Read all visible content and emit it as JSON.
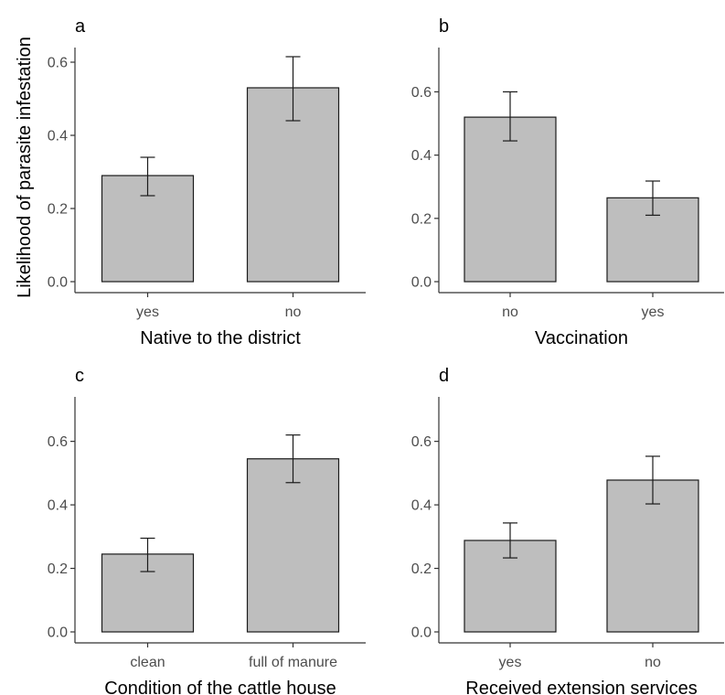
{
  "figure": {
    "ylabel": "Likelihood of parasite infestation"
  },
  "colors": {
    "bar_fill": "#bebebe",
    "bar_stroke": "#1a1a1a",
    "axis": "#333333",
    "tick_text": "#4d4d4d"
  },
  "chart_data": [
    {
      "type": "bar",
      "panel": "a",
      "categories": [
        "yes",
        "no"
      ],
      "values": [
        0.29,
        0.53
      ],
      "error_low": [
        0.235,
        0.44
      ],
      "error_high": [
        0.34,
        0.615
      ],
      "xlabel": "Native to the district",
      "ylabel": "Likelihood of parasite infestation",
      "ylim": [
        0,
        0.64
      ],
      "yticks": [
        0.0,
        0.2,
        0.4,
        0.6
      ],
      "ytick_labels": [
        "0.0",
        "0.2",
        "0.4",
        "0.6"
      ],
      "grid": false
    },
    {
      "type": "bar",
      "panel": "b",
      "categories": [
        "no",
        "yes"
      ],
      "values": [
        0.52,
        0.265
      ],
      "error_low": [
        0.445,
        0.21
      ],
      "error_high": [
        0.6,
        0.318
      ],
      "xlabel": "Vaccination",
      "ylim": [
        0,
        0.74
      ],
      "yticks": [
        0.0,
        0.2,
        0.4,
        0.6
      ],
      "ytick_labels": [
        "0.0",
        "0.2",
        "0.4",
        "0.6"
      ],
      "grid": false
    },
    {
      "type": "bar",
      "panel": "c",
      "categories": [
        "clean",
        "full of manure"
      ],
      "values": [
        0.245,
        0.545
      ],
      "error_low": [
        0.19,
        0.47
      ],
      "error_high": [
        0.295,
        0.62
      ],
      "xlabel": "Condition of the cattle house",
      "ylim": [
        0,
        0.74
      ],
      "yticks": [
        0.0,
        0.2,
        0.4,
        0.6
      ],
      "ytick_labels": [
        "0.0",
        "0.2",
        "0.4",
        "0.6"
      ],
      "grid": false
    },
    {
      "type": "bar",
      "panel": "d",
      "categories": [
        "yes",
        "no"
      ],
      "values": [
        0.288,
        0.478
      ],
      "error_low": [
        0.233,
        0.403
      ],
      "error_high": [
        0.343,
        0.553
      ],
      "xlabel": "Received extension services",
      "ylim": [
        0,
        0.74
      ],
      "yticks": [
        0.0,
        0.2,
        0.4,
        0.6
      ],
      "ytick_labels": [
        "0.0",
        "0.2",
        "0.4",
        "0.6"
      ],
      "grid": false
    }
  ]
}
